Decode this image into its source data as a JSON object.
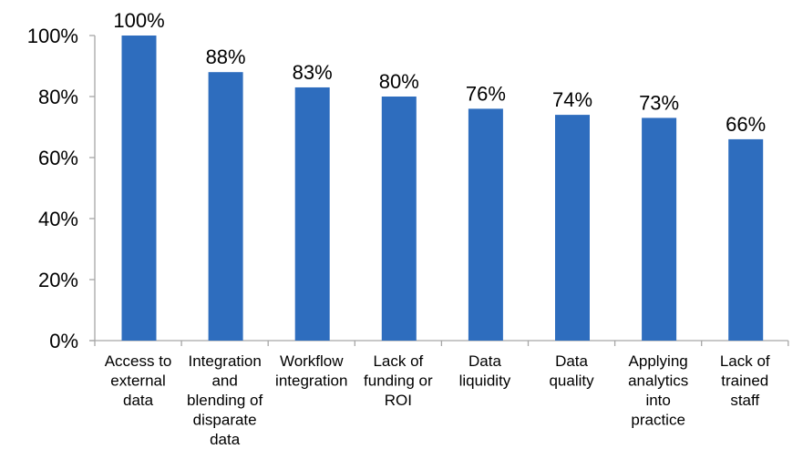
{
  "chart_data": {
    "type": "bar",
    "categories": [
      [
        "Access to",
        "external",
        "data"
      ],
      [
        "Integration",
        "and",
        "blending of",
        "disparate",
        "data"
      ],
      [
        "Workflow",
        "integration"
      ],
      [
        "Lack of",
        "funding or",
        "ROI"
      ],
      [
        "Data",
        "liquidity"
      ],
      [
        "Data",
        "quality"
      ],
      [
        "Applying",
        "analytics",
        "into",
        "practice"
      ],
      [
        "Lack of",
        "trained",
        "staff"
      ]
    ],
    "values": [
      100,
      88,
      83,
      80,
      76,
      74,
      73,
      66
    ],
    "data_labels": [
      "100%",
      "88%",
      "83%",
      "80%",
      "76%",
      "74%",
      "73%",
      "66%"
    ],
    "yticks": [
      "0%",
      "20%",
      "40%",
      "60%",
      "80%",
      "100%"
    ],
    "ylim": [
      0,
      100
    ],
    "grid": false,
    "legend": "none",
    "bar_color": "#2E6DBE",
    "axis_color": "#A6A6A6"
  }
}
